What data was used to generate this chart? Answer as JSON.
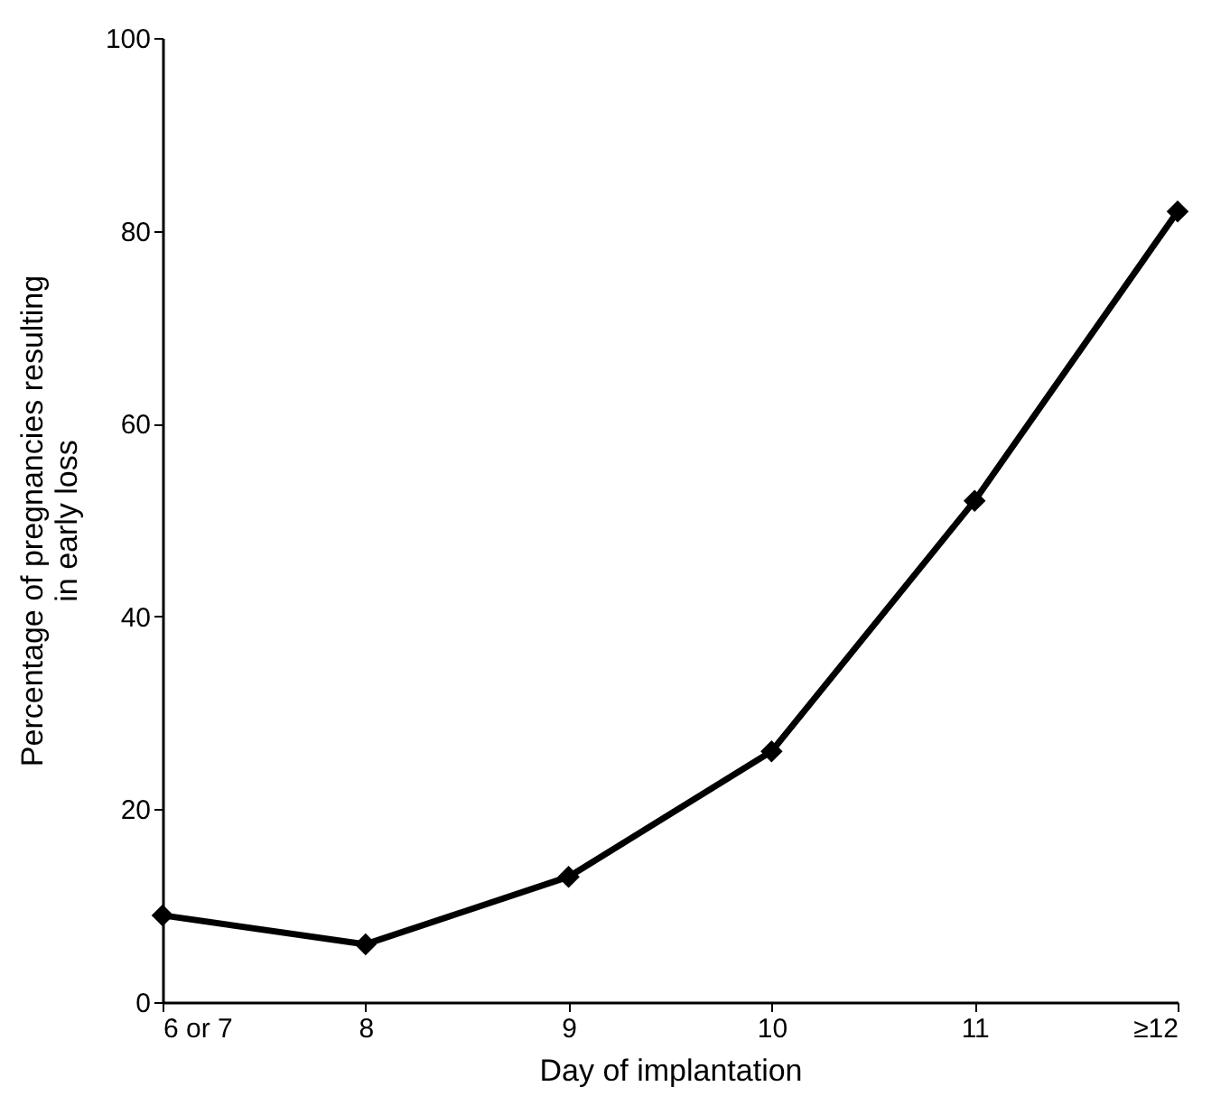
{
  "chart_data": {
    "type": "line",
    "xlabel": "Day of implantation",
    "ylabel": "Percentage of pregnancies resulting in early loss",
    "categories": [
      "6 or 7",
      "8",
      "9",
      "10",
      "11",
      "≥12"
    ],
    "series": [
      {
        "color": "#000000",
        "values": [
          9,
          6,
          13,
          26,
          52,
          82
        ]
      }
    ],
    "ylim": [
      0,
      100
    ],
    "yticks": [
      0,
      20,
      40,
      60,
      80,
      100
    ],
    "grid": false,
    "legend": false,
    "marker": "diamond",
    "line_style": "solid"
  }
}
